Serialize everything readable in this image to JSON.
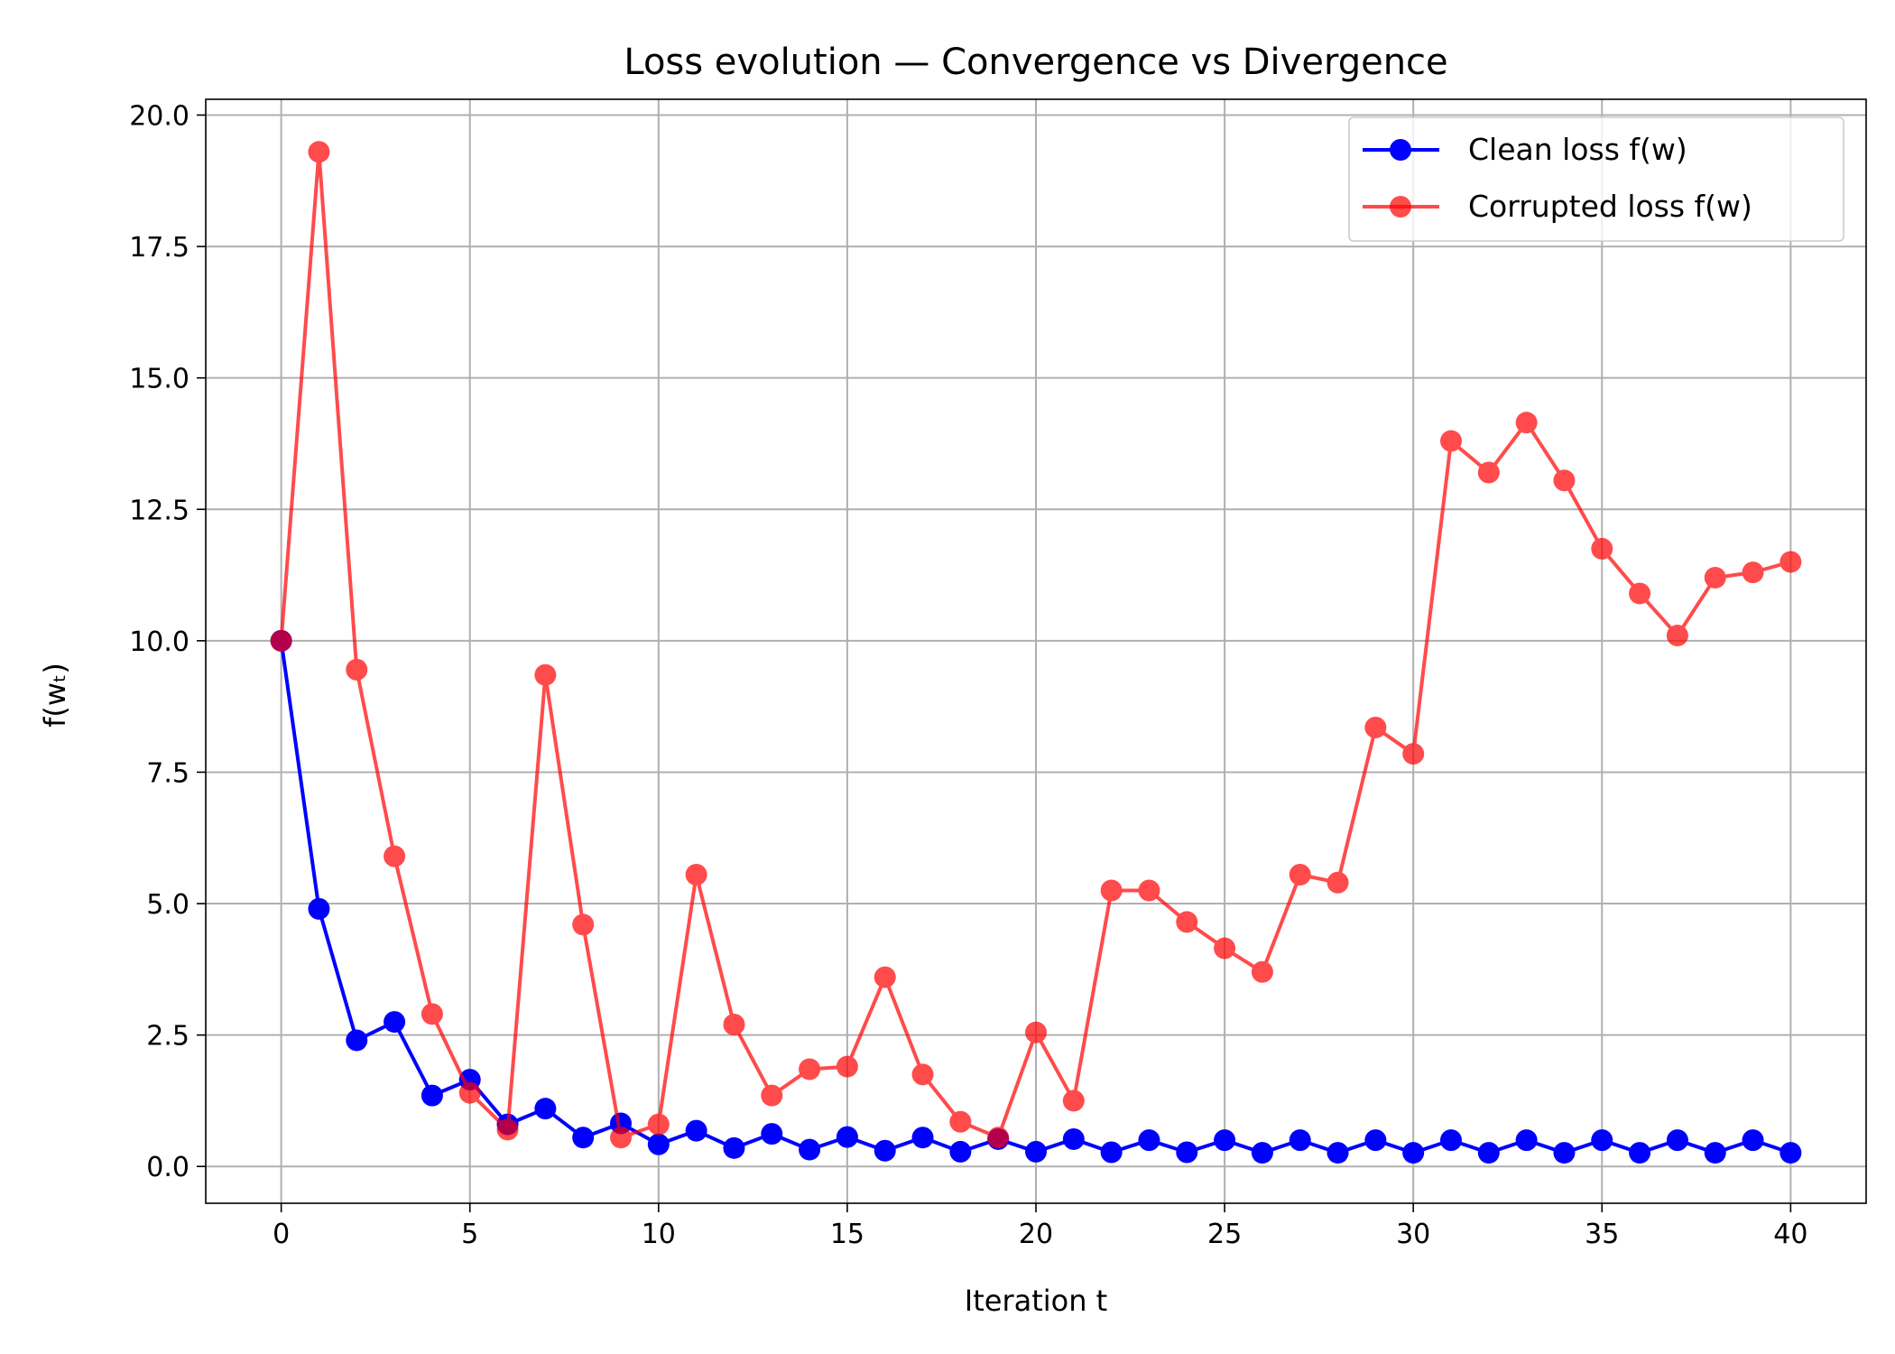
{
  "chart_data": {
    "type": "line",
    "title": "Loss evolution — Convergence vs Divergence",
    "xlabel": "Iteration t",
    "ylabel": "f(wₜ)",
    "xlim": [
      -2,
      42
    ],
    "ylim": [
      -0.7,
      20.3
    ],
    "x_ticks": [
      0,
      5,
      10,
      15,
      20,
      25,
      30,
      35,
      40
    ],
    "x_tick_labels": [
      "0",
      "5",
      "10",
      "15",
      "20",
      "25",
      "30",
      "35",
      "40"
    ],
    "y_ticks": [
      0,
      2.5,
      5,
      7.5,
      10,
      12.5,
      15,
      17.5,
      20
    ],
    "y_tick_labels": [
      "0.0",
      "2.5",
      "5.0",
      "7.5",
      "10.0",
      "12.5",
      "15.0",
      "17.5",
      "20.0"
    ],
    "grid": true,
    "legend_position": "top-right",
    "x": [
      0,
      1,
      2,
      3,
      4,
      5,
      6,
      7,
      8,
      9,
      10,
      11,
      12,
      13,
      14,
      15,
      16,
      17,
      18,
      19,
      20,
      21,
      22,
      23,
      24,
      25,
      26,
      27,
      28,
      29,
      30,
      31,
      32,
      33,
      34,
      35,
      36,
      37,
      38,
      39,
      40
    ],
    "series": [
      {
        "name": "Clean loss f(w)",
        "color": "#0000ff",
        "opacity": 1,
        "values": [
          10.0,
          4.9,
          2.4,
          2.75,
          1.35,
          1.65,
          0.8,
          1.1,
          0.55,
          0.82,
          0.42,
          0.68,
          0.35,
          0.62,
          0.32,
          0.56,
          0.3,
          0.55,
          0.28,
          0.52,
          0.28,
          0.52,
          0.27,
          0.5,
          0.27,
          0.5,
          0.26,
          0.5,
          0.26,
          0.5,
          0.26,
          0.5,
          0.26,
          0.5,
          0.26,
          0.5,
          0.26,
          0.5,
          0.26,
          0.5,
          0.26
        ]
      },
      {
        "name": "Corrupted loss f(w)",
        "color": "#ff0000",
        "opacity": 0.7,
        "values": [
          10.0,
          19.3,
          9.45,
          5.9,
          2.9,
          1.4,
          0.7,
          9.35,
          4.6,
          0.55,
          0.8,
          5.55,
          2.7,
          1.35,
          1.85,
          1.9,
          3.6,
          1.75,
          0.85,
          0.55,
          2.55,
          1.25,
          5.25,
          5.25,
          4.65,
          4.15,
          3.7,
          5.55,
          5.4,
          8.35,
          7.85,
          13.8,
          13.2,
          14.15,
          13.05,
          11.75,
          10.9,
          10.1,
          11.2,
          11.3,
          11.5
        ]
      }
    ]
  }
}
